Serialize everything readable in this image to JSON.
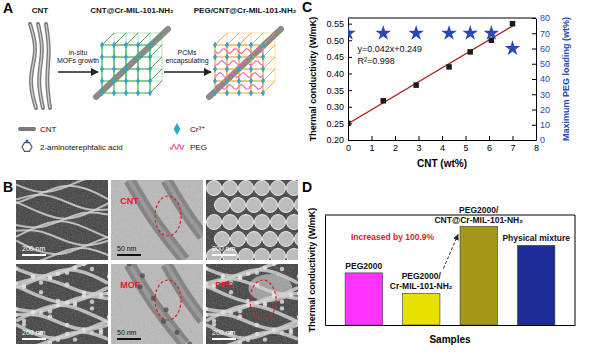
{
  "panels": [
    "A",
    "B",
    "C",
    "D"
  ],
  "schematic": {
    "stages": [
      "CNT",
      "CNT@Cr-MIL-101-NH₂",
      "PEG/CNT@Cr-MIL-101-NH₂"
    ],
    "steps": [
      "in-situ MOFs growth",
      "PCMs encapsulating"
    ],
    "key": [
      "CNT",
      "2-aminoterephtalic acid",
      "Cr³⁺",
      "PEG"
    ]
  },
  "micrographs": {
    "scale_bars": [
      "200 nm",
      "50 nm",
      "200 nm",
      "200 nm",
      "50 nm",
      "200 nm"
    ],
    "annotations": [
      {
        "image": 1,
        "text": "CNT"
      },
      {
        "image": 4,
        "text": "MOF"
      },
      {
        "image": 5,
        "text": "PEG"
      }
    ]
  },
  "chart_data": [
    {
      "type": "scatter",
      "x": [
        0,
        1.5,
        2.9,
        4.3,
        5.2,
        6.1,
        7.0
      ],
      "xlabel": "CNT (wt%)",
      "ylabel": "Thermal conductivity (W/mK)",
      "y2label": "Maximum PEG loading (wt%)",
      "xlim": [
        0,
        8
      ],
      "xticks": [
        0,
        1,
        2,
        3,
        4,
        5,
        6,
        7,
        8
      ],
      "ylim": [
        0.2,
        0.567
      ],
      "yticks": [
        {
          "value": 0.2,
          "label": "0.20"
        },
        {
          "value": 0.25,
          "label": "0.25"
        },
        {
          "value": 0.3,
          "label": "0.30"
        },
        {
          "value": 0.35,
          "label": "0.35"
        },
        {
          "value": 0.4,
          "label": "0.40"
        },
        {
          "value": 0.45,
          "label": "0.45"
        },
        {
          "value": 0.5,
          "label": "0.50"
        },
        {
          "value": 0.55,
          "label": "0.55"
        }
      ],
      "y2lim": [
        0,
        80
      ],
      "y2ticks": [
        0,
        10,
        20,
        30,
        40,
        50,
        60,
        70,
        80
      ],
      "series": [
        {
          "type": "scatter",
          "marker": "square",
          "color": "#1a1a1a",
          "values": [
            0.25,
            0.318,
            0.365,
            0.42,
            0.465,
            0.5,
            0.55
          ]
        },
        {
          "type": "line",
          "color": "#b01c1c",
          "x": [
            0,
            7.1
          ],
          "values": [
            0.249,
            0.547
          ]
        },
        {
          "type": "scatter",
          "marker": "star",
          "color": "#2a48b4",
          "axis": "y2",
          "values": [
            70,
            70,
            70,
            70,
            70,
            70,
            60
          ]
        }
      ],
      "annotations": [
        "y=0.042x+0.249",
        "R²=0.998"
      ]
    },
    {
      "type": "bar",
      "categories": [
        "PEG2000",
        "PEG2000/Cr-MIL-101-NH₂",
        "PEG2000/CNT@Cr-MIL-101-NH₂",
        "Physical mixture"
      ],
      "values": [
        0.3,
        0.229,
        0.46,
        0.395
      ],
      "colors": [
        "#ff33ff",
        "#e8e000",
        "#a6961a",
        "#1e2d9a"
      ],
      "xlabel": "Samples",
      "ylabel": "Thermal conductivity (W/mK)",
      "ylim": [
        0.12,
        0.5
      ],
      "tick_labels": false,
      "annotations": [
        "Increased by 100.9%"
      ]
    }
  ]
}
